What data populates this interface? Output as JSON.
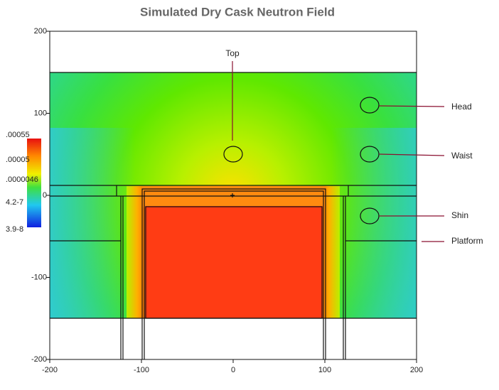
{
  "chart_data": {
    "type": "heatmap",
    "title": "Simulated Dry Cask Neutron Field",
    "xlim": [
      -200,
      200
    ],
    "ylim": [
      -200,
      200
    ],
    "xticks": [
      -200,
      -100,
      0,
      100,
      200
    ],
    "yticks": [
      200,
      100,
      0,
      -100,
      -200
    ],
    "colorbar_labels": [
      ".00055",
      ".00005",
      ".0000046",
      "4.2-7",
      "3.9-8"
    ],
    "annotations": [
      "Top",
      "Head",
      "Waist",
      "Shin",
      "Platform"
    ]
  }
}
